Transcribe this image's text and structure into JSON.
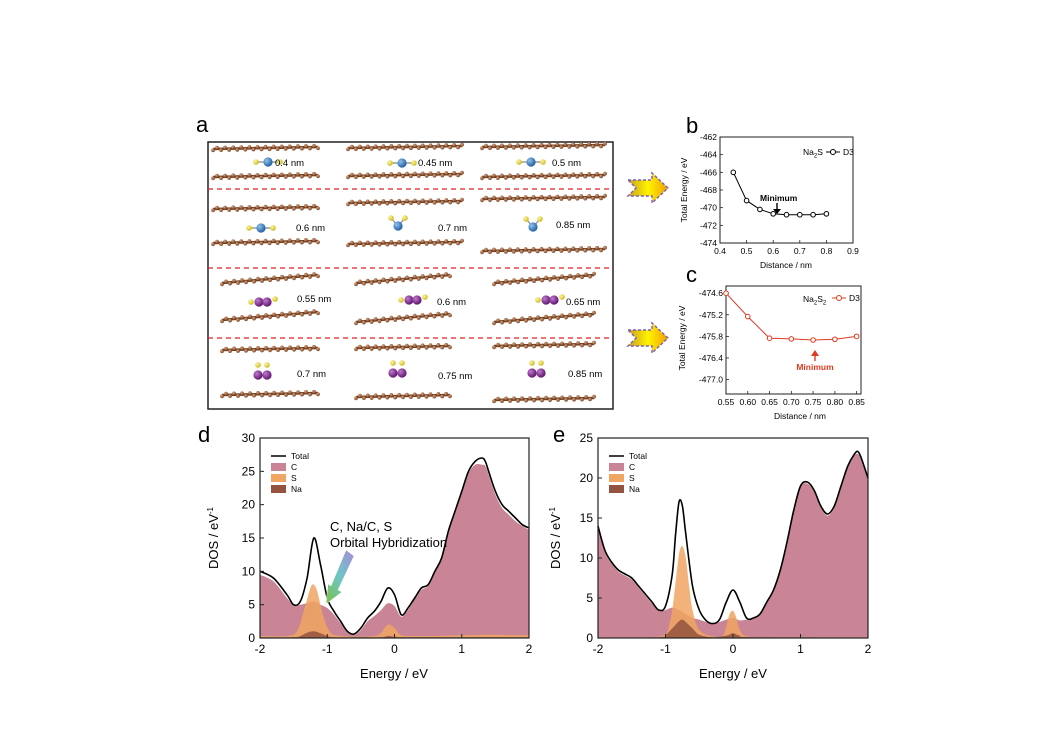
{
  "panel_labels": {
    "a": "a",
    "b": "b",
    "c": "c",
    "d": "d",
    "e": "e"
  },
  "colors": {
    "carbon": "#9a5e3c",
    "sulfur": "#e8de2c",
    "sodium_blue": "#2f76c0",
    "sodium_purple": "#7a1f8c",
    "divider": "#e02020",
    "curve_c": "#e03a1e",
    "dos_total": "#000000",
    "dos_c": "#c98595",
    "dos_s": "#f0a562",
    "dos_na": "#935340",
    "arrow_gold": "#f4c20d"
  },
  "panel_a": {
    "rows": [
      {
        "molecule": "Na2S",
        "distances": [
          "0.4 nm",
          "0.45 nm",
          "0.5 nm"
        ]
      },
      {
        "molecule": "Na2S",
        "distances": [
          "0.6 nm",
          "0.7 nm",
          "0.85 nm"
        ]
      },
      {
        "molecule": "Na2S2",
        "distances": [
          "0.55 nm",
          "0.6 nm",
          "0.65 nm"
        ]
      },
      {
        "molecule": "Na2S2",
        "distances": [
          "0.7 nm",
          "0.75 nm",
          "0.85 nm"
        ]
      }
    ]
  },
  "chart_data": [
    {
      "id": "b",
      "type": "line",
      "xlabel": "Distance / nm",
      "ylabel": "Total Energy / eV",
      "xlim": [
        0.4,
        0.9
      ],
      "ylim": [
        -474,
        -462
      ],
      "xticks": [
        "0.4",
        "0.5",
        "0.6",
        "0.7",
        "0.8",
        "0.9"
      ],
      "yticks": [
        "-462",
        "-464",
        "-466",
        "-468",
        "-470",
        "-472",
        "-474"
      ],
      "legend": {
        "base": "Na",
        "sub": "2",
        "rest": "S",
        "series": "D3"
      },
      "annotation": "Minimum",
      "series": [
        {
          "name": "D3",
          "x": [
            0.45,
            0.5,
            0.55,
            0.6,
            0.65,
            0.7,
            0.75,
            0.8
          ],
          "y": [
            -466.0,
            -469.2,
            -470.2,
            -470.7,
            -470.8,
            -470.8,
            -470.8,
            -470.7
          ]
        }
      ]
    },
    {
      "id": "c",
      "type": "line",
      "xlabel": "Distance / nm",
      "ylabel": "Total Energy / eV",
      "xlim": [
        0.55,
        0.86
      ],
      "ylim": [
        -477.4,
        -474.4
      ],
      "xticks": [
        "0.55",
        "0.60",
        "0.65",
        "0.70",
        "0.75",
        "0.80",
        "0.85"
      ],
      "yticks": [
        "-474.6",
        "-475.2",
        "-475.8",
        "-476.4",
        "-477.0"
      ],
      "legend": {
        "base": "Na",
        "sub1": "2",
        "mid": "S",
        "sub2": "2",
        "series": "D3"
      },
      "annotation": "Minimum",
      "series": [
        {
          "name": "D3",
          "x": [
            0.55,
            0.6,
            0.65,
            0.7,
            0.75,
            0.8,
            0.85
          ],
          "y": [
            -474.6,
            -475.25,
            -475.85,
            -475.87,
            -475.9,
            -475.88,
            -475.8
          ]
        }
      ]
    },
    {
      "id": "d",
      "type": "area",
      "xlabel": "Energy / eV",
      "ylabel": "DOS / eV",
      "ylabel_sup": "-1",
      "xlim": [
        -2,
        2
      ],
      "ylim": [
        0,
        30
      ],
      "xticks": [
        "-2",
        "-1",
        "0",
        "1",
        "2"
      ],
      "yticks": [
        "0",
        "5",
        "10",
        "15",
        "20",
        "25",
        "30"
      ],
      "legend": [
        "Total",
        "C",
        "S",
        "Na"
      ],
      "annotation": [
        "C, Na/C, S",
        "Orbital Hybridization"
      ],
      "series": [
        {
          "name": "Total",
          "x": [
            -2,
            -1.8,
            -1.6,
            -1.5,
            -1.4,
            -1.3,
            -1.2,
            -1.1,
            -1.0,
            -0.9,
            -0.8,
            -0.7,
            -0.6,
            -0.5,
            -0.4,
            -0.3,
            -0.2,
            -0.1,
            0.0,
            0.1,
            0.2,
            0.3,
            0.4,
            0.5,
            0.6,
            0.7,
            0.8,
            0.9,
            1.0,
            1.1,
            1.2,
            1.3,
            1.35,
            1.4,
            1.5,
            1.6,
            1.7,
            1.8,
            1.9,
            2.0
          ],
          "y": [
            10,
            9,
            6.5,
            5,
            5.5,
            9,
            15,
            11,
            6,
            4,
            2.5,
            1,
            0.6,
            1.5,
            3,
            4,
            5.5,
            7.5,
            6.5,
            3.5,
            4.5,
            6,
            7.5,
            8,
            10,
            12,
            16,
            19,
            22,
            25,
            26.5,
            27,
            26.5,
            25,
            22,
            20,
            19,
            18,
            17,
            16.5
          ]
        },
        {
          "name": "C",
          "x": [
            -2,
            -1.8,
            -1.6,
            -1.5,
            -1.4,
            -1.3,
            -1.2,
            -1.1,
            -1.0,
            -0.9,
            -0.8,
            -0.7,
            -0.6,
            -0.5,
            -0.4,
            -0.3,
            -0.2,
            -0.1,
            0.0,
            0.1,
            0.2,
            0.3,
            0.4,
            0.5,
            0.6,
            0.7,
            0.8,
            0.9,
            1.0,
            1.1,
            1.2,
            1.3,
            1.35,
            1.4,
            1.5,
            1.6,
            1.7,
            1.8,
            1.9,
            2.0
          ],
          "y": [
            9.5,
            8.5,
            6,
            5,
            5,
            5.2,
            5.5,
            5,
            4.5,
            3.5,
            2.2,
            0.9,
            0.5,
            1.2,
            2.5,
            3.3,
            4.2,
            5.2,
            4.8,
            3.2,
            4.2,
            5.8,
            7.2,
            7.8,
            9.8,
            11.8,
            15.7,
            18.7,
            21.7,
            24.7,
            26,
            26,
            25.8,
            24.5,
            21.5,
            19.5,
            18.5,
            17.5,
            16.8,
            16.2
          ]
        },
        {
          "name": "S",
          "x": [
            -2,
            -1.6,
            -1.45,
            -1.35,
            -1.25,
            -1.2,
            -1.15,
            -1.05,
            -0.95,
            -0.8,
            -0.5,
            -0.3,
            -0.2,
            -0.1,
            0.0,
            0.1,
            0.3,
            0.6,
            1.0,
            1.4,
            1.8,
            2.0
          ],
          "y": [
            0.3,
            0.3,
            1.0,
            4.0,
            7.5,
            8.0,
            7.0,
            3.0,
            0.8,
            0.3,
            0.2,
            0.3,
            0.8,
            2.0,
            1.5,
            0.4,
            0.3,
            0.3,
            0.4,
            0.5,
            0.4,
            0.4
          ]
        },
        {
          "name": "Na",
          "x": [
            -2,
            -1.5,
            -1.4,
            -1.3,
            -1.2,
            -1.1,
            -1.0,
            -0.9,
            -0.5,
            -0.2,
            -0.1,
            0.0,
            0.1,
            0.5,
            2.0
          ],
          "y": [
            0.1,
            0.1,
            0.3,
            0.8,
            1.0,
            0.7,
            0.3,
            0.1,
            0.1,
            0.1,
            0.3,
            0.2,
            0.1,
            0.1,
            0.1
          ]
        }
      ]
    },
    {
      "id": "e",
      "type": "area",
      "xlabel": "Energy / eV",
      "ylabel": "DOS / eV",
      "ylabel_sup": "-1",
      "xlim": [
        -2,
        2
      ],
      "ylim": [
        0,
        25
      ],
      "xticks": [
        "-2",
        "-1",
        "0",
        "1",
        "2"
      ],
      "yticks": [
        "0",
        "5",
        "10",
        "15",
        "20",
        "25"
      ],
      "legend": [
        "Total",
        "C",
        "S",
        "Na"
      ],
      "series": [
        {
          "name": "Total",
          "x": [
            -2,
            -1.9,
            -1.8,
            -1.7,
            -1.6,
            -1.5,
            -1.4,
            -1.3,
            -1.2,
            -1.1,
            -1.0,
            -0.9,
            -0.85,
            -0.8,
            -0.75,
            -0.7,
            -0.6,
            -0.5,
            -0.4,
            -0.3,
            -0.2,
            -0.1,
            0.0,
            0.1,
            0.2,
            0.3,
            0.4,
            0.5,
            0.6,
            0.7,
            0.8,
            0.9,
            1.0,
            1.1,
            1.2,
            1.3,
            1.4,
            1.5,
            1.6,
            1.7,
            1.8,
            1.85,
            1.9,
            2.0
          ],
          "y": [
            14,
            11,
            9.5,
            8.5,
            8,
            7.5,
            6.5,
            5.5,
            4.5,
            3.5,
            4.0,
            8.0,
            13.0,
            17.0,
            16.5,
            13.0,
            6.5,
            3.5,
            2.2,
            1.8,
            2.3,
            4.5,
            6.0,
            4.5,
            2.5,
            2.5,
            3.0,
            4.5,
            6.0,
            8.5,
            12.0,
            16.0,
            19.0,
            19.5,
            18.5,
            16.5,
            15.5,
            16.5,
            19.0,
            21.5,
            23.0,
            23.3,
            22.5,
            20.0
          ]
        },
        {
          "name": "C",
          "x": [
            -2,
            -1.9,
            -1.8,
            -1.7,
            -1.6,
            -1.5,
            -1.4,
            -1.3,
            -1.2,
            -1.1,
            -1.0,
            -0.9,
            -0.8,
            -0.7,
            -0.6,
            -0.5,
            -0.4,
            -0.3,
            -0.2,
            -0.1,
            0.0,
            0.1,
            0.2,
            0.3,
            0.4,
            0.5,
            0.6,
            0.7,
            0.8,
            0.9,
            1.0,
            1.1,
            1.2,
            1.3,
            1.4,
            1.5,
            1.6,
            1.7,
            1.8,
            1.85,
            1.9,
            2.0
          ],
          "y": [
            13.8,
            10.8,
            9.3,
            8.3,
            7.8,
            7.3,
            6.3,
            5.3,
            4.3,
            3.4,
            3.5,
            3.8,
            3.5,
            3.0,
            2.5,
            2.3,
            2.0,
            1.7,
            2.0,
            2.3,
            2.5,
            2.2,
            2.3,
            2.4,
            2.9,
            4.4,
            5.9,
            8.4,
            11.9,
            15.9,
            18.9,
            19.3,
            18.3,
            16.3,
            15.3,
            16.3,
            18.8,
            21.3,
            22.8,
            23.0,
            22.3,
            19.8
          ]
        },
        {
          "name": "S",
          "x": [
            -2,
            -1.2,
            -1.0,
            -0.95,
            -0.9,
            -0.85,
            -0.8,
            -0.75,
            -0.7,
            -0.65,
            -0.6,
            -0.5,
            -0.3,
            -0.15,
            -0.1,
            -0.05,
            0.0,
            0.05,
            0.1,
            0.2,
            0.5,
            1.0,
            2.0
          ],
          "y": [
            0.1,
            0.1,
            0.5,
            1.5,
            3.5,
            7.0,
            10.5,
            11.5,
            10.0,
            6.5,
            3.5,
            1.0,
            0.2,
            0.3,
            1.5,
            3.0,
            3.4,
            2.5,
            1.0,
            0.2,
            0.1,
            0.1,
            0.1
          ]
        },
        {
          "name": "Na",
          "x": [
            -2,
            -1.1,
            -1.0,
            -0.9,
            -0.8,
            -0.75,
            -0.7,
            -0.6,
            -0.5,
            -0.3,
            -0.1,
            0.0,
            0.1,
            0.3,
            2.0
          ],
          "y": [
            0.05,
            0.1,
            0.4,
            1.2,
            2.1,
            2.3,
            2.0,
            1.2,
            0.4,
            0.1,
            0.3,
            0.6,
            0.3,
            0.1,
            0.05
          ]
        }
      ]
    }
  ]
}
